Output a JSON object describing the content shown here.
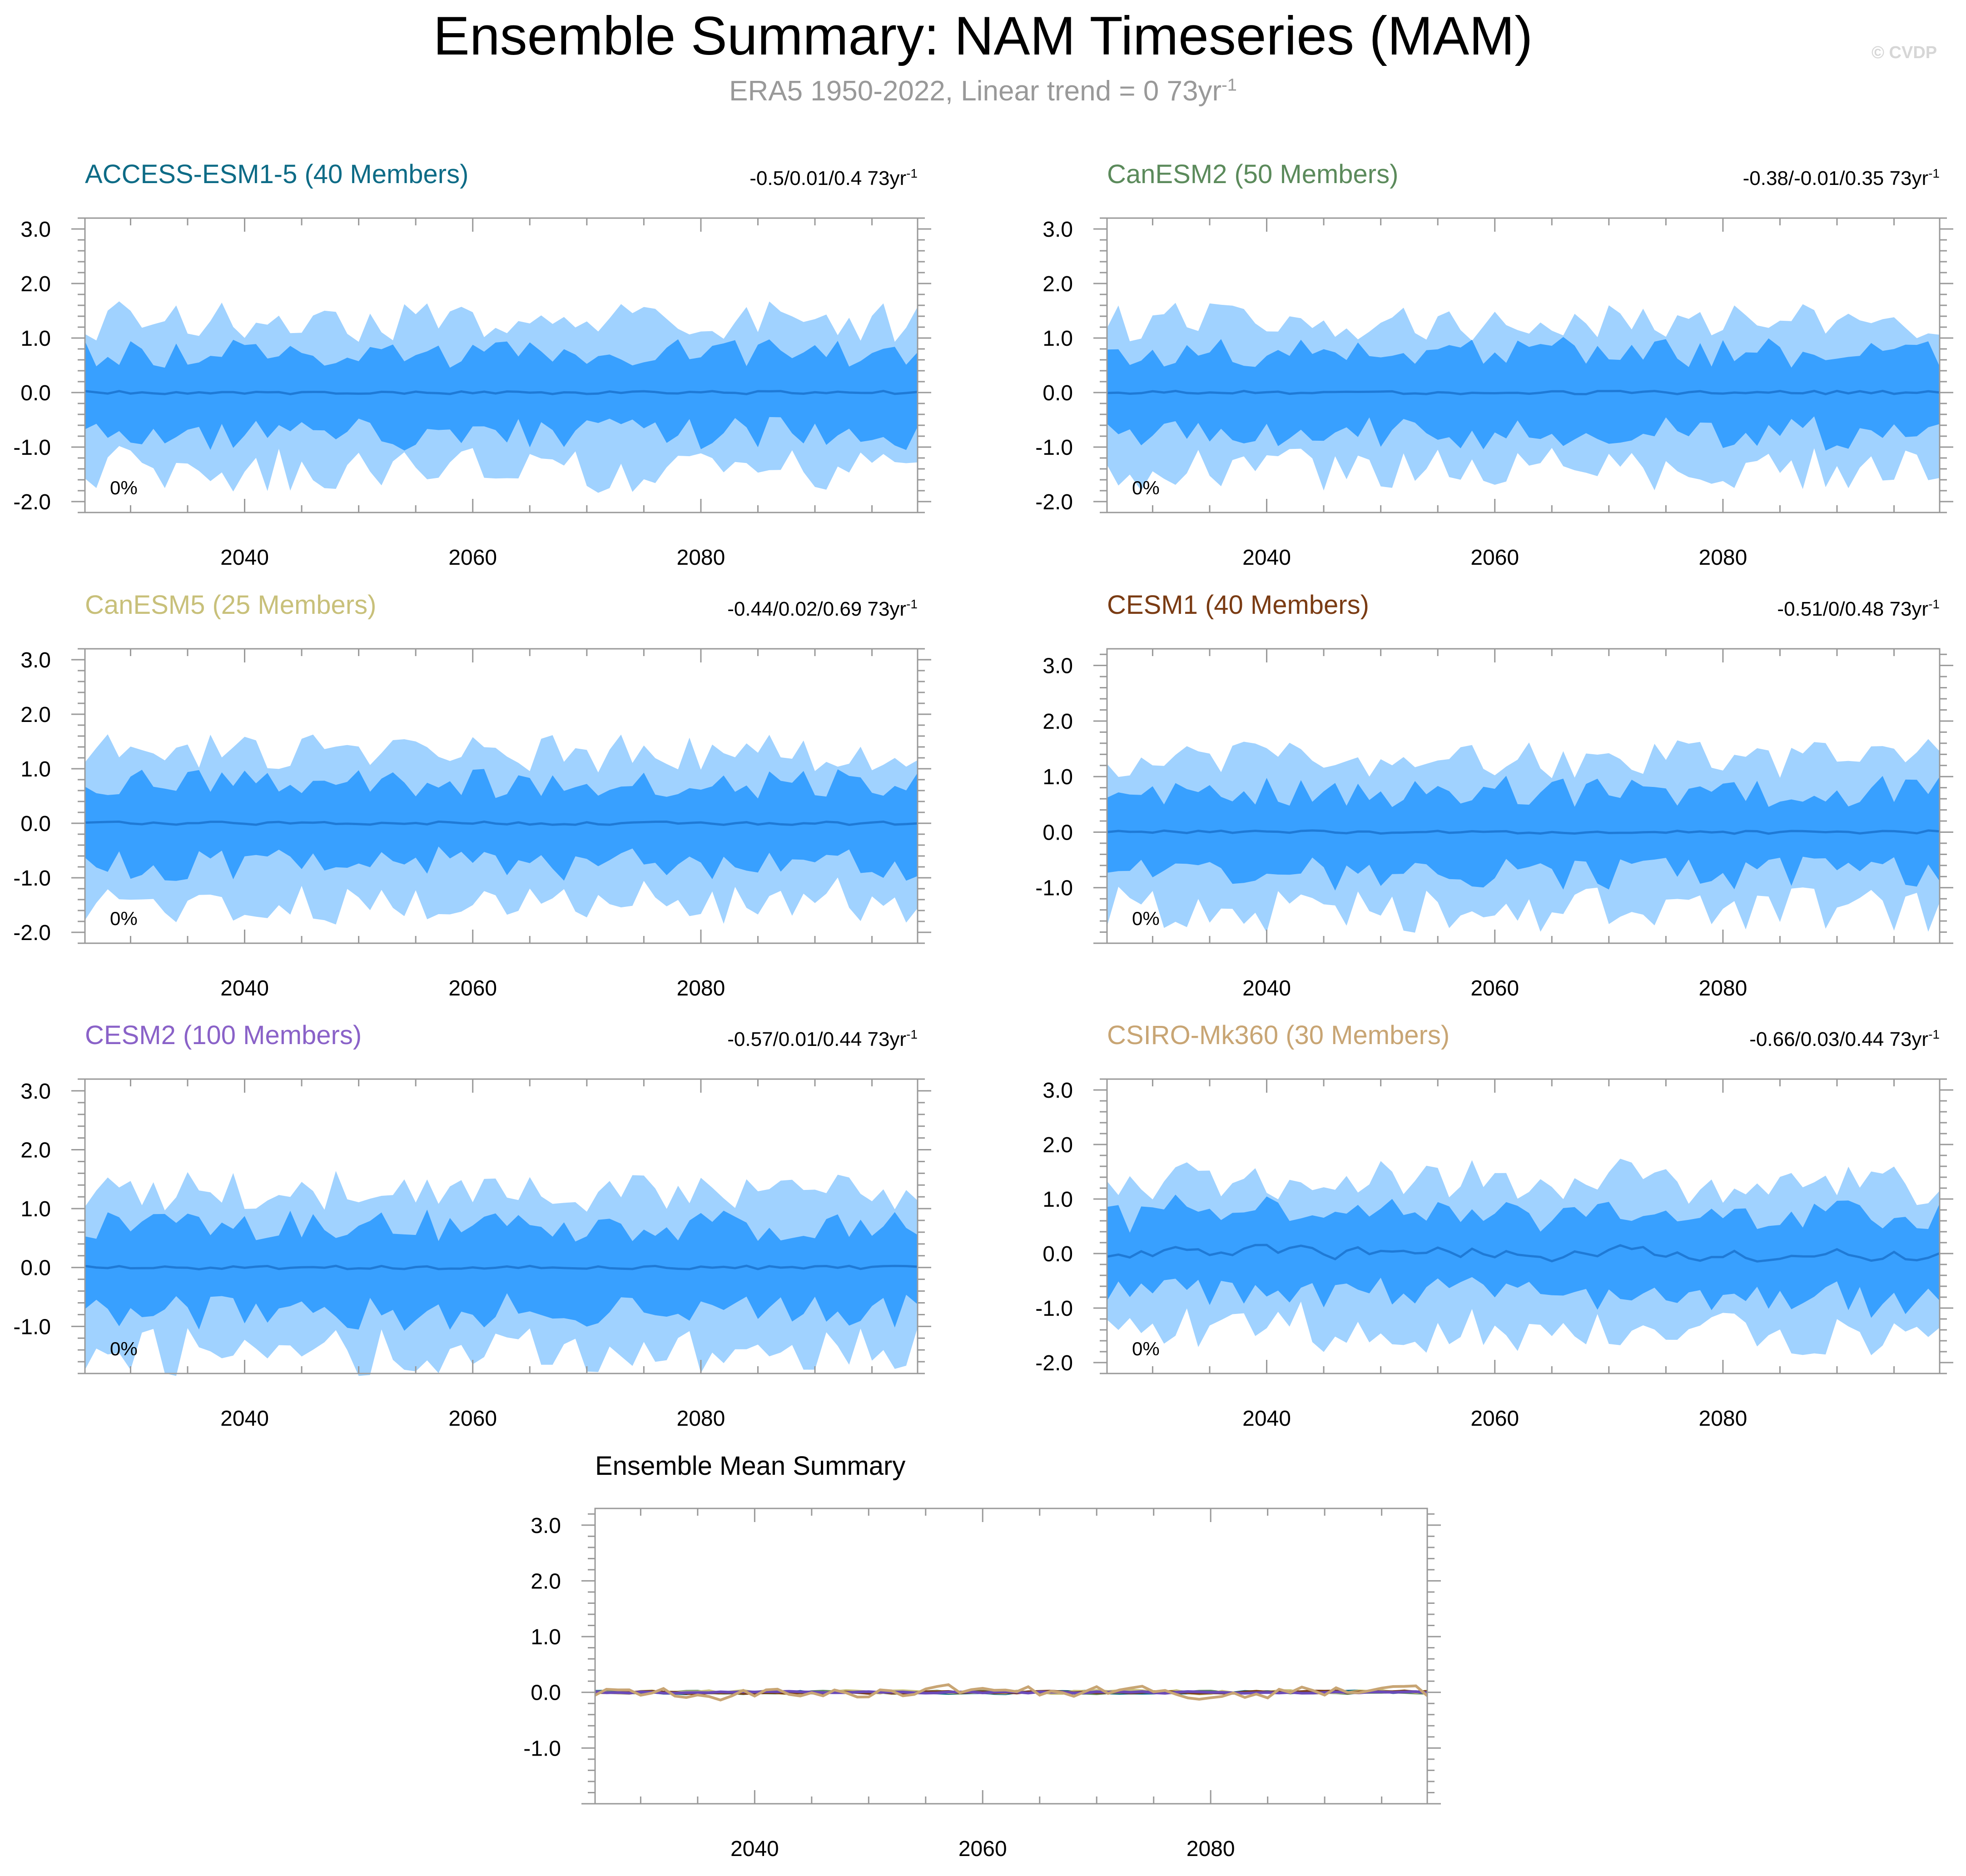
{
  "page": {
    "title": "Ensemble Summary: NAM Timeseries (MAM)",
    "subtitle": "ERA5 1950-2022, Linear trend = 0 73yr",
    "subtitle_sup": "-1",
    "watermark": "© CVDP"
  },
  "colors": {
    "outer_band": "#a0d2ff",
    "inner_band": "#38a0ff",
    "mean_line": "#1f7ad6",
    "axis": "#999999",
    "tick_label": "#000000"
  },
  "chart_data": [
    {
      "id": "access",
      "type": "area",
      "title": "ACCESS-ESM1-5 (40 Members)",
      "title_color": "#0d6b86",
      "trend": "-0.5/0.01/0.4 73yr",
      "trend_sup": "-1",
      "pct": "0%",
      "xlim": [
        2026,
        2099
      ],
      "ylim": [
        -2.2,
        3.2
      ],
      "x_ticks": [
        2040,
        2060,
        2080
      ],
      "y_ticks": [
        "3.0",
        "2.0",
        "1.0",
        "0.0",
        "-1.0",
        "-2.0"
      ],
      "seed": 11,
      "amp": 0.0,
      "mean_offset": 0.0
    },
    {
      "id": "canesm2",
      "type": "area",
      "title": "CanESM2 (50 Members)",
      "title_color": "#5b8a5b",
      "trend": "-0.38/-0.01/0.35 73yr",
      "trend_sup": "-1",
      "pct": "0%",
      "xlim": [
        2026,
        2099
      ],
      "ylim": [
        -2.2,
        3.2
      ],
      "x_ticks": [
        2040,
        2060,
        2080
      ],
      "y_ticks": [
        "3.0",
        "2.0",
        "1.0",
        "0.0",
        "-1.0",
        "-2.0"
      ],
      "seed": 23,
      "amp": 0.0,
      "mean_offset": 0.0
    },
    {
      "id": "canesm5",
      "type": "area",
      "title": "CanESM5 (25 Members)",
      "title_color": "#c8c07a",
      "trend": "-0.44/0.02/0.69 73yr",
      "trend_sup": "-1",
      "pct": "0%",
      "xlim": [
        2026,
        2099
      ],
      "ylim": [
        -2.2,
        3.2
      ],
      "x_ticks": [
        2040,
        2060,
        2080
      ],
      "y_ticks": [
        "3.0",
        "2.0",
        "1.0",
        "0.0",
        "-1.0",
        "-2.0"
      ],
      "seed": 37,
      "amp": 0.0,
      "mean_offset": 0.0
    },
    {
      "id": "cesm1",
      "type": "area",
      "title": "CESM1 (40 Members)",
      "title_color": "#7a3b13",
      "trend": "-0.51/0/0.48 73yr",
      "trend_sup": "-1",
      "pct": "0%",
      "xlim": [
        2026,
        2099
      ],
      "ylim": [
        -2.0,
        3.3
      ],
      "x_ticks": [
        2040,
        2060,
        2080
      ],
      "y_ticks": [
        "3.0",
        "2.0",
        "1.0",
        "0.0",
        "-1.0"
      ],
      "seed": 41,
      "amp": 0.0,
      "mean_offset": 0.0
    },
    {
      "id": "cesm2",
      "type": "area",
      "title": "CESM2 (100 Members)",
      "title_color": "#8a62c8",
      "trend": "-0.57/0.01/0.44 73yr",
      "trend_sup": "-1",
      "pct": "0%",
      "xlim": [
        2026,
        2099
      ],
      "ylim": [
        -1.8,
        3.2
      ],
      "x_ticks": [
        2040,
        2060,
        2080
      ],
      "y_ticks": [
        "3.0",
        "2.0",
        "1.0",
        "0.0",
        "-1.0"
      ],
      "seed": 53,
      "amp": 0.0,
      "mean_offset": 0.0
    },
    {
      "id": "csiro",
      "type": "area",
      "title": "CSIRO-Mk360 (30 Members)",
      "title_color": "#c8a574",
      "trend": "-0.66/0.03/0.44 73yr",
      "trend_sup": "-1",
      "pct": "0%",
      "xlim": [
        2026,
        2099
      ],
      "ylim": [
        -2.2,
        3.2
      ],
      "x_ticks": [
        2040,
        2060,
        2080
      ],
      "y_ticks": [
        "3.0",
        "2.0",
        "1.0",
        "0.0",
        "-1.0",
        "-2.0"
      ],
      "seed": 67,
      "amp": 0.12,
      "mean_offset": 0.0
    },
    {
      "id": "mean",
      "type": "line",
      "title": "Ensemble Mean Summary",
      "title_color": "#000000",
      "xlim": [
        2026,
        2099
      ],
      "ylim": [
        -2.0,
        3.3
      ],
      "x_ticks": [
        2040,
        2060,
        2080
      ],
      "y_ticks": [
        "3.0",
        "2.0",
        "1.0",
        "0.0",
        "-1.0"
      ],
      "series": [
        {
          "name": "ACCESS-ESM1-5",
          "color": "#0d6b86",
          "seed": 11,
          "amp": 0.02
        },
        {
          "name": "CanESM2",
          "color": "#5b8a5b",
          "seed": 23,
          "amp": 0.02
        },
        {
          "name": "CanESM5",
          "color": "#c8c07a",
          "seed": 37,
          "amp": 0.03
        },
        {
          "name": "CESM1",
          "color": "#7a3b13",
          "seed": 41,
          "amp": 0.02
        },
        {
          "name": "CESM2",
          "color": "#6a4ab8",
          "seed": 53,
          "amp": 0.015
        },
        {
          "name": "CSIRO-Mk360",
          "color": "#c8a574",
          "seed": 67,
          "amp": 0.11
        }
      ]
    }
  ]
}
